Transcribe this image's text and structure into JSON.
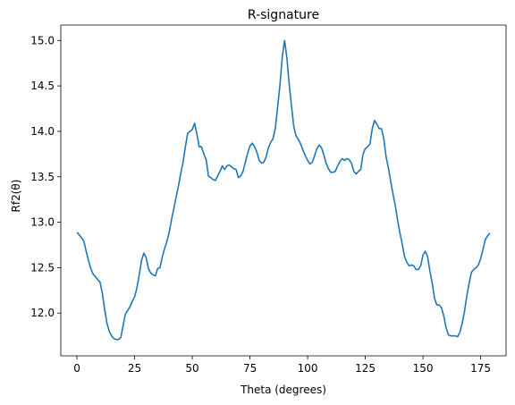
{
  "chart_data": {
    "type": "line",
    "title": "R-signature",
    "xlabel": "Theta (degrees)",
    "ylabel": "Rf2(θ)",
    "xlim": [
      -7,
      186
    ],
    "ylim": [
      11.53,
      15.17
    ],
    "xticks": [
      0,
      25,
      50,
      75,
      100,
      125,
      150,
      175
    ],
    "yticks": [
      12.0,
      12.5,
      13.0,
      13.5,
      14.0,
      14.5,
      15.0
    ],
    "xtick_labels": [
      "0",
      "25",
      "50",
      "75",
      "100",
      "125",
      "150",
      "175"
    ],
    "ytick_labels": [
      "12.0",
      "12.5",
      "13.0",
      "13.5",
      "14.0",
      "14.5",
      "15.0"
    ],
    "grid": false,
    "legend": "none",
    "series": [
      {
        "color": "#1f77b4",
        "x": [
          0,
          1,
          2,
          3,
          4,
          5,
          6,
          7,
          8,
          9,
          10,
          11,
          12,
          13,
          14,
          15,
          16,
          17,
          18,
          19,
          20,
          21,
          22,
          23,
          24,
          25,
          26,
          27,
          28,
          29,
          30,
          31,
          32,
          33,
          34,
          35,
          36,
          37,
          38,
          39,
          40,
          41,
          42,
          43,
          44,
          45,
          46,
          47,
          48,
          49,
          50,
          51,
          52,
          53,
          54,
          55,
          56,
          57,
          58,
          59,
          60,
          61,
          62,
          63,
          64,
          65,
          66,
          67,
          68,
          69,
          70,
          71,
          72,
          73,
          74,
          75,
          76,
          77,
          78,
          79,
          80,
          81,
          82,
          83,
          84,
          85,
          86,
          87,
          88,
          89,
          90,
          91,
          92,
          93,
          94,
          95,
          96,
          97,
          98,
          99,
          100,
          101,
          102,
          103,
          104,
          105,
          106,
          107,
          108,
          109,
          110,
          111,
          112,
          113,
          114,
          115,
          116,
          117,
          118,
          119,
          120,
          121,
          122,
          123,
          124,
          125,
          126,
          127,
          128,
          129,
          130,
          131,
          132,
          133,
          134,
          135,
          136,
          137,
          138,
          139,
          140,
          141,
          142,
          143,
          144,
          145,
          146,
          147,
          148,
          149,
          150,
          151,
          152,
          153,
          154,
          155,
          156,
          157,
          158,
          159,
          160,
          161,
          162,
          163,
          164,
          165,
          166,
          167,
          168,
          169,
          170,
          171,
          172,
          173,
          174,
          175,
          176,
          177,
          178,
          179
        ],
        "y": [
          12.89,
          12.86,
          12.83,
          12.79,
          12.68,
          12.58,
          12.49,
          12.43,
          12.4,
          12.37,
          12.34,
          12.22,
          12.04,
          11.89,
          11.8,
          11.75,
          11.72,
          11.71,
          11.71,
          11.73,
          11.86,
          11.99,
          12.03,
          12.07,
          12.13,
          12.18,
          12.28,
          12.42,
          12.58,
          12.66,
          12.61,
          12.49,
          12.44,
          12.42,
          12.41,
          12.49,
          12.5,
          12.62,
          12.71,
          12.79,
          12.89,
          13.03,
          13.15,
          13.28,
          13.4,
          13.54,
          13.66,
          13.83,
          13.98,
          14.0,
          14.02,
          14.09,
          13.97,
          13.83,
          13.83,
          13.75,
          13.69,
          13.51,
          13.49,
          13.47,
          13.46,
          13.51,
          13.56,
          13.62,
          13.58,
          13.62,
          13.63,
          13.61,
          13.59,
          13.58,
          13.49,
          13.51,
          13.56,
          13.66,
          13.76,
          13.84,
          13.87,
          13.83,
          13.77,
          13.68,
          13.65,
          13.66,
          13.72,
          13.82,
          13.88,
          13.92,
          14.04,
          14.27,
          14.51,
          14.82,
          15.0,
          14.81,
          14.52,
          14.28,
          14.05,
          13.95,
          13.91,
          13.86,
          13.79,
          13.73,
          13.68,
          13.64,
          13.66,
          13.73,
          13.81,
          13.85,
          13.82,
          13.74,
          13.65,
          13.59,
          13.55,
          13.55,
          13.56,
          13.62,
          13.67,
          13.7,
          13.68,
          13.7,
          13.69,
          13.65,
          13.56,
          13.53,
          13.56,
          13.58,
          13.75,
          13.81,
          13.83,
          13.86,
          14.03,
          14.12,
          14.08,
          14.03,
          14.03,
          13.92,
          13.72,
          13.6,
          13.45,
          13.31,
          13.18,
          13.02,
          12.88,
          12.76,
          12.62,
          12.56,
          12.52,
          12.53,
          12.52,
          12.48,
          12.48,
          12.52,
          12.64,
          12.68,
          12.62,
          12.46,
          12.33,
          12.16,
          12.09,
          12.09,
          12.06,
          11.97,
          11.84,
          11.76,
          11.75,
          11.75,
          11.75,
          11.74,
          11.79,
          11.89,
          12.02,
          12.19,
          12.33,
          12.45,
          12.48,
          12.5,
          12.53,
          12.6,
          12.7,
          12.81,
          12.85,
          12.88
        ]
      }
    ]
  }
}
